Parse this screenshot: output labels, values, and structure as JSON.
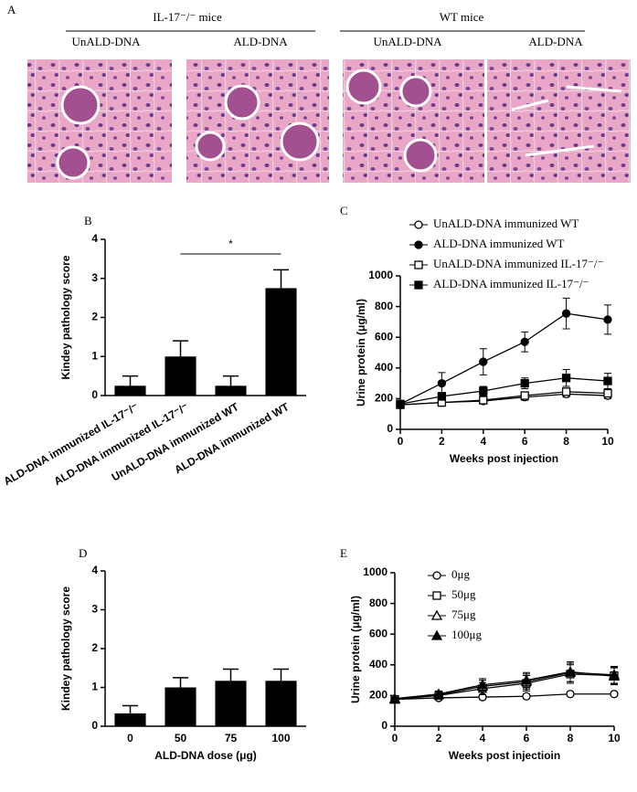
{
  "panel_a": {
    "label": "A",
    "groups": [
      {
        "title": "IL-17⁻/⁻ mice",
        "columns": [
          "UnALD-DNA",
          "ALD-DNA"
        ]
      },
      {
        "title": "WT mice",
        "columns": [
          "UnALD-DNA",
          "ALD-DNA"
        ]
      }
    ]
  },
  "chart_data": [
    {
      "type": "bar",
      "panel": "B",
      "y_label": "Kindey pathology score",
      "categories": [
        "ALD-DNA immunized IL-17⁻/⁻",
        "ALD-DNA immunized IL-17⁻/⁻",
        "UnALD-DNA immunized WT",
        "ALD-DNA immunized WT"
      ],
      "values": [
        0.25,
        1.0,
        0.25,
        2.75
      ],
      "errors": [
        0.25,
        0.4,
        0.25,
        0.47
      ],
      "color": "#000000",
      "ylim": [
        0,
        4
      ],
      "yticks": [
        0,
        1,
        2,
        3,
        4
      ],
      "annotation": "*"
    },
    {
      "type": "line",
      "panel": "C",
      "x_label": "Weeks post injection",
      "y_label": "Urine protein (μg/ml)",
      "x": [
        0,
        2,
        4,
        6,
        8,
        10
      ],
      "xlim": [
        0,
        10
      ],
      "xticks": [
        0,
        2,
        4,
        6,
        8,
        10
      ],
      "ylim": [
        0,
        1000
      ],
      "yticks": [
        0,
        200,
        400,
        600,
        800,
        1000
      ],
      "series": [
        {
          "name": "UnALD-DNA immunized WT",
          "color": "#000000",
          "marker": "circle",
          "filled": false,
          "values": [
            160,
            175,
            185,
            210,
            230,
            220
          ],
          "errors": [
            10,
            15,
            15,
            20,
            20,
            20
          ]
        },
        {
          "name": "ALD-DNA immunized WT",
          "color": "#000000",
          "marker": "circle",
          "filled": true,
          "values": [
            165,
            300,
            440,
            570,
            755,
            715
          ],
          "errors": [
            10,
            70,
            85,
            65,
            100,
            95
          ]
        },
        {
          "name": "UnALD-DNA immunized IL-17⁻/⁻",
          "color": "#000000",
          "marker": "square",
          "filled": false,
          "values": [
            160,
            175,
            190,
            220,
            245,
            235
          ],
          "errors": [
            10,
            15,
            15,
            20,
            20,
            20
          ]
        },
        {
          "name": "ALD-DNA immunized IL-17⁻/⁻",
          "color": "#000000",
          "marker": "square",
          "filled": true,
          "values": [
            165,
            215,
            250,
            300,
            335,
            315
          ],
          "errors": [
            10,
            25,
            30,
            35,
            55,
            50
          ]
        }
      ]
    },
    {
      "type": "bar",
      "panel": "D",
      "x_label": "ALD-DNA dose (μg)",
      "y_label": "Kindey pathology score",
      "categories": [
        "0",
        "50",
        "75",
        "100"
      ],
      "values": [
        0.33,
        1.0,
        1.17,
        1.17
      ],
      "errors": [
        0.2,
        0.25,
        0.3,
        0.3
      ],
      "color": "#000000",
      "ylim": [
        0,
        4
      ],
      "yticks": [
        0,
        1,
        2,
        3,
        4
      ]
    },
    {
      "type": "line",
      "panel": "E",
      "x_label": "Weeks post injectioin",
      "y_label": "Urine protein (μg/ml)",
      "x": [
        0,
        2,
        4,
        6,
        8,
        10
      ],
      "xlim": [
        0,
        10
      ],
      "xticks": [
        0,
        2,
        4,
        6,
        8,
        10
      ],
      "ylim": [
        0,
        1000
      ],
      "yticks": [
        0,
        200,
        400,
        600,
        800,
        1000
      ],
      "series": [
        {
          "name": "0μg",
          "color": "#000000",
          "marker": "circle",
          "filled": false,
          "values": [
            175,
            185,
            190,
            195,
            210,
            210
          ],
          "errors": [
            10,
            15,
            15,
            15,
            10,
            10
          ]
        },
        {
          "name": "50μg",
          "color": "#000000",
          "marker": "square",
          "filled": false,
          "values": [
            175,
            200,
            245,
            280,
            340,
            330
          ],
          "errors": [
            10,
            20,
            40,
            50,
            60,
            55
          ]
        },
        {
          "name": "75μg",
          "color": "#000000",
          "marker": "triangle",
          "filled": false,
          "values": [
            175,
            205,
            260,
            290,
            350,
            335
          ],
          "errors": [
            10,
            20,
            40,
            50,
            60,
            55
          ]
        },
        {
          "name": "100μg",
          "color": "#000000",
          "marker": "triangle",
          "filled": true,
          "values": [
            180,
            210,
            270,
            300,
            355,
            325
          ],
          "errors": [
            10,
            20,
            40,
            50,
            65,
            55
          ]
        }
      ]
    }
  ]
}
